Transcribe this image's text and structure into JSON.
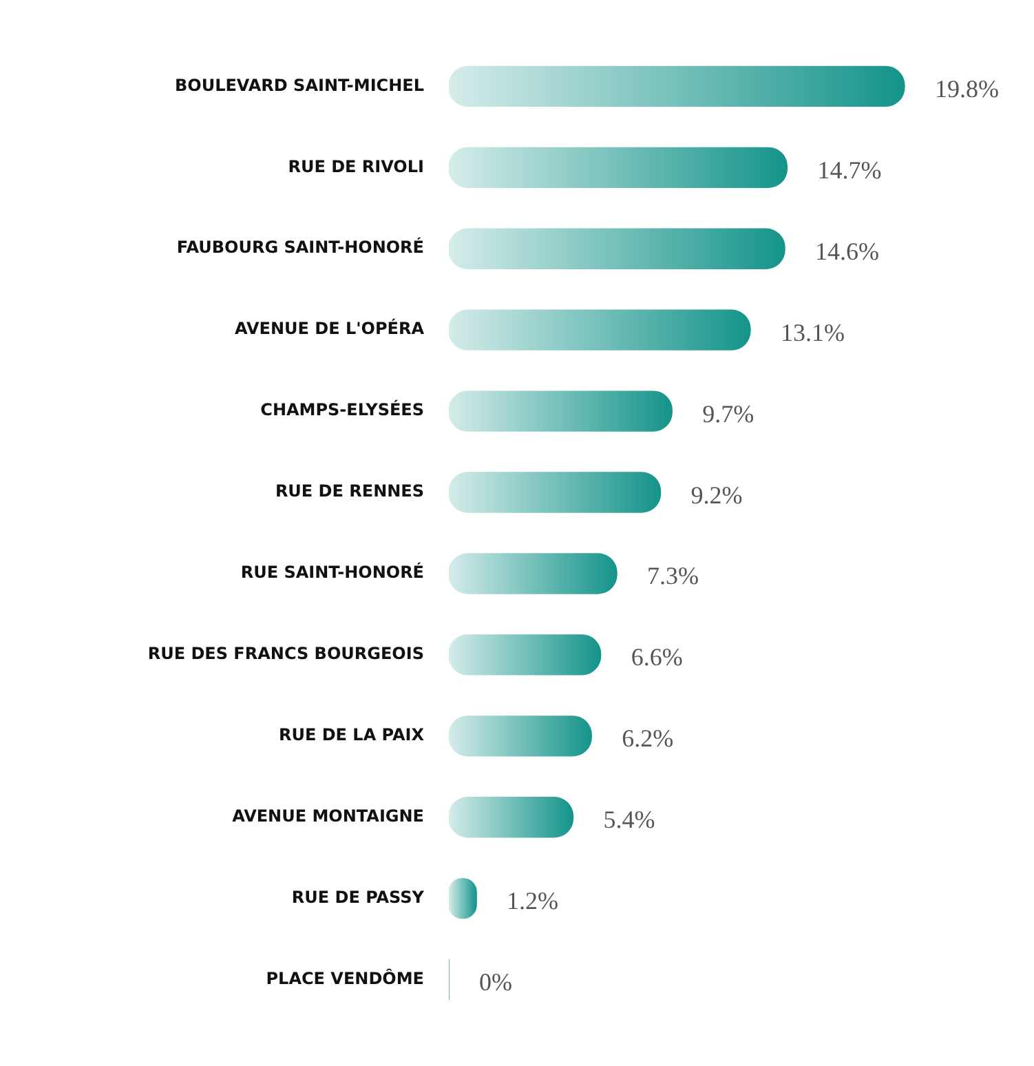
{
  "chart_data": {
    "type": "bar",
    "orientation": "horizontal",
    "categories": [
      "BOULEVARD SAINT-MICHEL",
      "RUE DE RIVOLI",
      "FAUBOURG SAINT-HONORÉ",
      "AVENUE DE L'OPÉRA",
      "CHAMPS-ELYSÉES",
      "RUE DE RENNES",
      "RUE SAINT-HONORÉ",
      "RUE DES FRANCS BOURGEOIS",
      "RUE DE LA PAIX",
      "AVENUE MONTAIGNE",
      "RUE DE PASSY",
      "PLACE VENDÔME"
    ],
    "values": [
      19.8,
      14.7,
      14.6,
      13.1,
      9.7,
      9.2,
      7.3,
      6.6,
      6.2,
      5.4,
      1.2,
      0
    ],
    "value_labels": [
      "19.8%",
      "14.7%",
      "14.6%",
      "13.1%",
      "9.7%",
      "9.2%",
      "7.3%",
      "6.6%",
      "6.2%",
      "5.4%",
      "1.2%",
      "0%"
    ],
    "color": "#14948a",
    "grid": false,
    "legend": false,
    "tick_labels": "y"
  }
}
